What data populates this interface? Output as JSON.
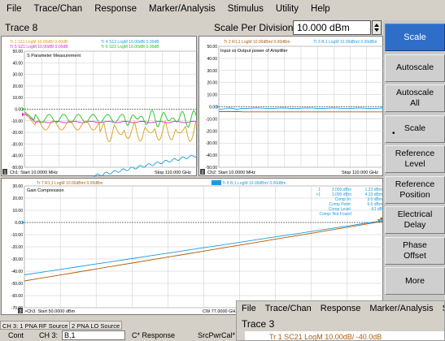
{
  "menu": [
    "File",
    "Trace/Chan",
    "Response",
    "Marker/Analysis",
    "Stimulus",
    "Utility",
    "Help"
  ],
  "active_trace": "Trace 8",
  "scale_per_division": {
    "label": "Scale Per Division",
    "value": "10.000 dBm"
  },
  "softkeys": [
    {
      "label": "Scale",
      "active": true
    },
    {
      "label": "Autoscale"
    },
    {
      "label": "Autoscale\nAll"
    },
    {
      "label": "Scale",
      "marked": true
    },
    {
      "label": "Reference\nLevel"
    },
    {
      "label": "Reference\nPosition"
    },
    {
      "label": "Electrical\nDelay"
    },
    {
      "label": "Phase\nOffset"
    },
    {
      "label": "More"
    }
  ],
  "panel1": {
    "legend": [
      "Tr 1 S11 LogM 10.00dB/ 0.00dB",
      "Tr 4 S12 LogM 10.00dB/ 0.00dB",
      "Tr 5 S21 LogM 10.00dB/ 0.00dB",
      "Tr 6 S22 LogM 10.00dB/ 0.00dB"
    ],
    "legend_colors": [
      "#d4a017",
      "#1a9de0",
      "#e020e0",
      "#20c020"
    ],
    "title": "S Parameter Measurement",
    "yticks": [
      "50.00",
      "40.00",
      "30.00",
      "20.00",
      "10.00",
      "0.00",
      "-10.00",
      "-20.00",
      "-30.00",
      "-40.00",
      "-50.00"
    ],
    "footer_num": "1",
    "footer_start": "Ch1: Start 10.0000 MHz",
    "footer_stop": "Stop 110.000 GHz"
  },
  "panel2": {
    "legend": [
      "Tr 2 R1,1 LogM 10.00dBm/ 0.00dBm",
      "Tr 3 B,1 LogM 10.00dBm/ 0.00dBm"
    ],
    "legend_colors": [
      "#b35a00",
      "#1a9de0"
    ],
    "title": "Input vs Output power of Amplifier",
    "yticks": [
      "50.00",
      "40.00",
      "30.00",
      "20.00",
      "10.00",
      "0.00",
      "-10.00",
      "-20.00",
      "-30.00",
      "-40.00",
      "-50.00"
    ],
    "footer_num": "2",
    "footer_start": "Ch2: Start 10.0000 MHz",
    "footer_stop": "Stop 110.000 GHz"
  },
  "panel3": {
    "legend": [
      "Tr 7 R1,1 LogM 10.00dBm/ 0.00dBm",
      "Tr 8 B,1 LogM 10.00dBm/ 0.00dBm"
    ],
    "legend_colors": [
      "#b35a00",
      "#1a9de0"
    ],
    "title": "Gain Compression",
    "yticks": [
      "30.00",
      "20.00",
      "10.00",
      "0.00",
      "-10.00",
      "-20.00",
      "-30.00",
      "-40.00",
      "-50.00",
      "-60.00",
      "-70.00"
    ],
    "markers": [
      [
        "1",
        "3.000 dBm",
        "1.23 dBm"
      ],
      [
        ">1",
        "3.000 dBm",
        "4.33 dBm"
      ],
      [
        "",
        "Comp In:",
        "3.0 dBm"
      ],
      [
        "",
        "Comp Point:",
        "9.6 dBm"
      ],
      [
        "",
        "Comp Level:",
        "-61 dB"
      ],
      [
        "",
        "Comp: Not Found",
        ""
      ]
    ],
    "footer_num": "3",
    "footer_start": ">Ch3: Start 50.0000 dBm",
    "footer_stop": "CW 77.0000 GHz"
  },
  "status": {
    "tabs": [
      "CH 3: 1 PNA RF Source",
      "2 PNA LO Source"
    ],
    "cont": "Cont",
    "ch": "CH 3:",
    "ch_value": "B,1",
    "response": "C* Response",
    "srcpwrcal": "SrcPwrCal*"
  },
  "second_window": {
    "menu": [
      "File",
      "Trace/Chan",
      "Response",
      "Marker/Analysis",
      "Stimu"
    ],
    "trace": "Trace 3",
    "trace_row": "Tr 1 SC21 LogM 10.00dB/ -40.0dB",
    "trace_row_tail": "T"
  }
}
